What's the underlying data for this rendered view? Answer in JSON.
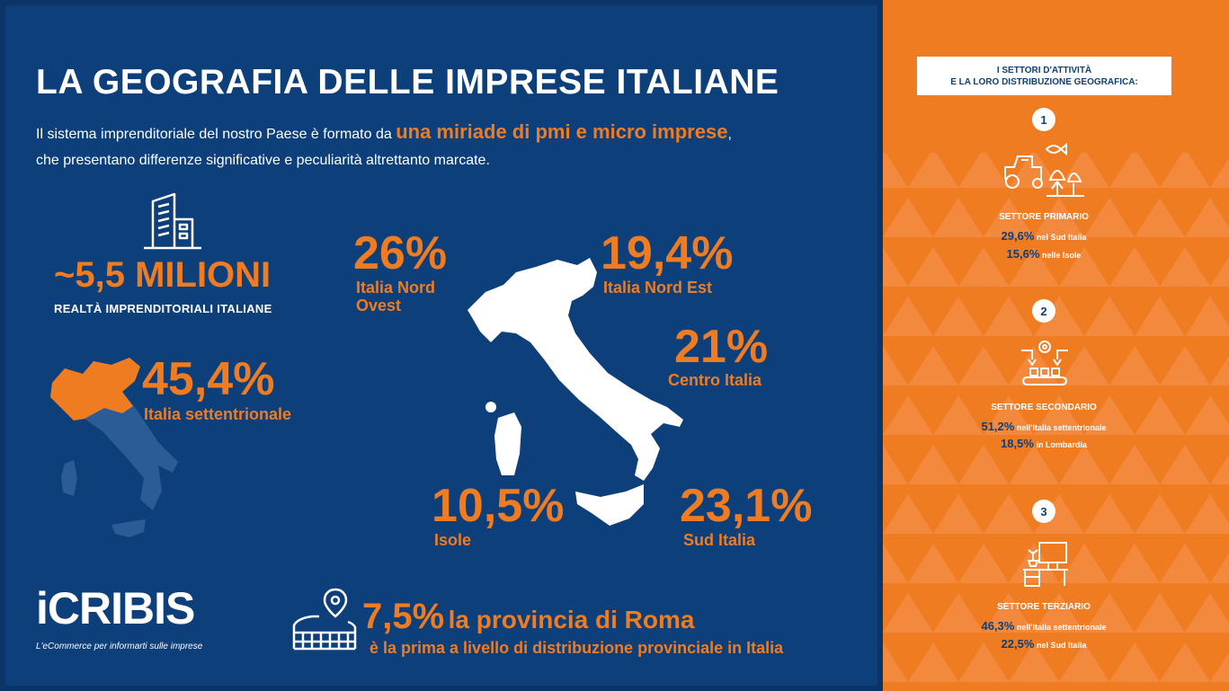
{
  "title": "LA GEOGRAFIA DELLE IMPRESE ITALIANE",
  "intro": {
    "part1": "Il sistema imprenditoriale del nostro Paese è formato da ",
    "highlight": "una miriade di pmi e micro imprese",
    "part2": ",",
    "line2": "che presentano differenze significative e peculiarità altrettanto marcate."
  },
  "companies": {
    "value": "~5,5 MILIONI",
    "caption": "REALTÀ IMPRENDITORIALI ITALIANE"
  },
  "north": {
    "value": "45,4%",
    "label": "Italia settentrionale"
  },
  "regions": {
    "nord_ovest": {
      "value": "26%",
      "label_line1": "Italia Nord",
      "label_line2": "Ovest"
    },
    "nord_est": {
      "value": "19,4%",
      "label": "Italia Nord Est"
    },
    "centro": {
      "value": "21%",
      "label": "Centro Italia"
    },
    "isole": {
      "value": "10,5%",
      "label": "Isole"
    },
    "sud": {
      "value": "23,1%",
      "label": "Sud Italia"
    }
  },
  "roma": {
    "value": "7,5%",
    "label": "la provincia di Roma",
    "sub": "è la prima a livello di distribuzione provinciale in Italia"
  },
  "logo": {
    "name": "iCRIBIS",
    "tagline": "L'eCommerce per informarti sulle imprese"
  },
  "sidebar": {
    "header_line1": "I SETTORI D'ATTIVITÀ",
    "header_line2": "E LA LORO DISTRIBUZIONE GEOGRAFICA:",
    "sectors": [
      {
        "number": "1",
        "title": "SETTORE PRIMARIO",
        "stats": [
          {
            "value": "29,6%",
            "text": "nel Sud Italia"
          },
          {
            "value": "15,6%",
            "text": "nelle Isole"
          }
        ]
      },
      {
        "number": "2",
        "title": "SETTORE SECONDARIO",
        "stats": [
          {
            "value": "51,2%",
            "text": "nell'Italia settentrionale"
          },
          {
            "value": "18,5%",
            "text": "in Lombardia"
          }
        ]
      },
      {
        "number": "3",
        "title": "SETTORE TERZIARIO",
        "stats": [
          {
            "value": "46,3%",
            "text": "nell'Italia settentrionale"
          },
          {
            "value": "22,5%",
            "text": "nel Sud Italia"
          }
        ]
      }
    ]
  },
  "colors": {
    "navy": "#0d3f7a",
    "orange": "#f07c22",
    "white": "#ffffff"
  }
}
